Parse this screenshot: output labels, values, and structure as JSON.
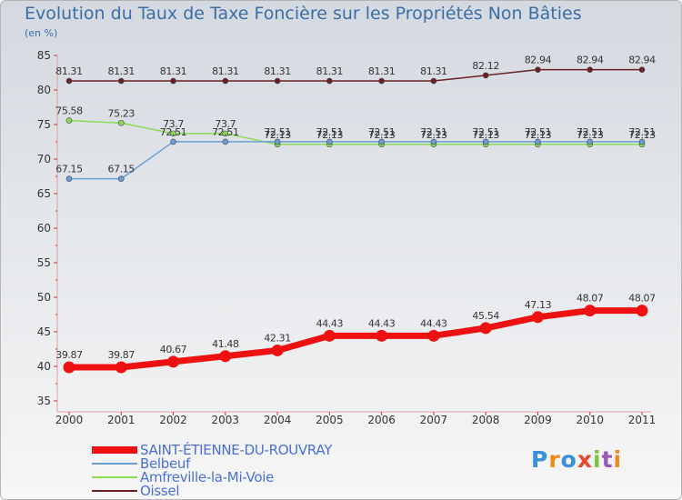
{
  "title": "Evolution du Taux de Taxe Foncière sur les Propriétés Non Bâties",
  "unit_label": "(en %)",
  "brand": "Proxiti",
  "chart_data": {
    "type": "line",
    "title": "Evolution du Taux de Taxe Foncière sur les Propriétés Non Bâties",
    "ylabel": "(en %)",
    "xlabel": "",
    "x": [
      "2000",
      "2001",
      "2002",
      "2003",
      "2004",
      "2005",
      "2006",
      "2007",
      "2008",
      "2009",
      "2010",
      "2011"
    ],
    "ylim": [
      35,
      85
    ],
    "yticks": [
      35,
      40,
      45,
      50,
      55,
      60,
      65,
      70,
      75,
      80,
      85
    ],
    "grid": false,
    "legend_position": "bottom-left",
    "series": [
      {
        "name": "SAINT-ÉTIENNE-DU-ROUVRAY",
        "color": "#ee1111",
        "values": [
          39.87,
          39.87,
          40.67,
          41.48,
          42.31,
          44.43,
          44.43,
          44.43,
          45.54,
          47.13,
          48.07,
          48.07
        ],
        "labels": [
          "39.87",
          "39.87",
          "40.67",
          "41.48",
          "42.31",
          "44.43",
          "44.43",
          "44.43",
          "45.54",
          "47.13",
          "48.07",
          "48.07"
        ]
      },
      {
        "name": "Belbeuf",
        "color": "#6a9fd4",
        "values": [
          67.15,
          67.15,
          72.51,
          72.51,
          72.51,
          72.51,
          72.51,
          72.51,
          72.51,
          72.51,
          72.51,
          72.51
        ],
        "labels": [
          "67.15",
          "67.15",
          "72.51",
          "72.51",
          "72.51",
          "72.51",
          "72.51",
          "72.51",
          "72.51",
          "72.51",
          "72.51",
          "72.51"
        ]
      },
      {
        "name": "Amfreville-la-Mi-Voie",
        "color": "#88dd55",
        "values": [
          75.58,
          75.23,
          73.7,
          73.7,
          72.13,
          72.13,
          72.13,
          72.13,
          72.13,
          72.13,
          72.13,
          72.13
        ],
        "labels": [
          "75.58",
          "75.23",
          "73.7",
          "73.7",
          "72.13",
          "72.13",
          "72.13",
          "72.13",
          "72.13",
          "72.13",
          "72.13",
          "72.13"
        ]
      },
      {
        "name": "Oissel",
        "color": "#6b2024",
        "values": [
          81.31,
          81.31,
          81.31,
          81.31,
          81.31,
          81.31,
          81.31,
          81.31,
          82.12,
          82.94,
          82.94,
          82.94
        ],
        "labels": [
          "81.31",
          "81.31",
          "81.31",
          "81.31",
          "81.31",
          "81.31",
          "81.31",
          "81.31",
          "82.12",
          "82.94",
          "82.94",
          "82.94"
        ]
      }
    ]
  }
}
